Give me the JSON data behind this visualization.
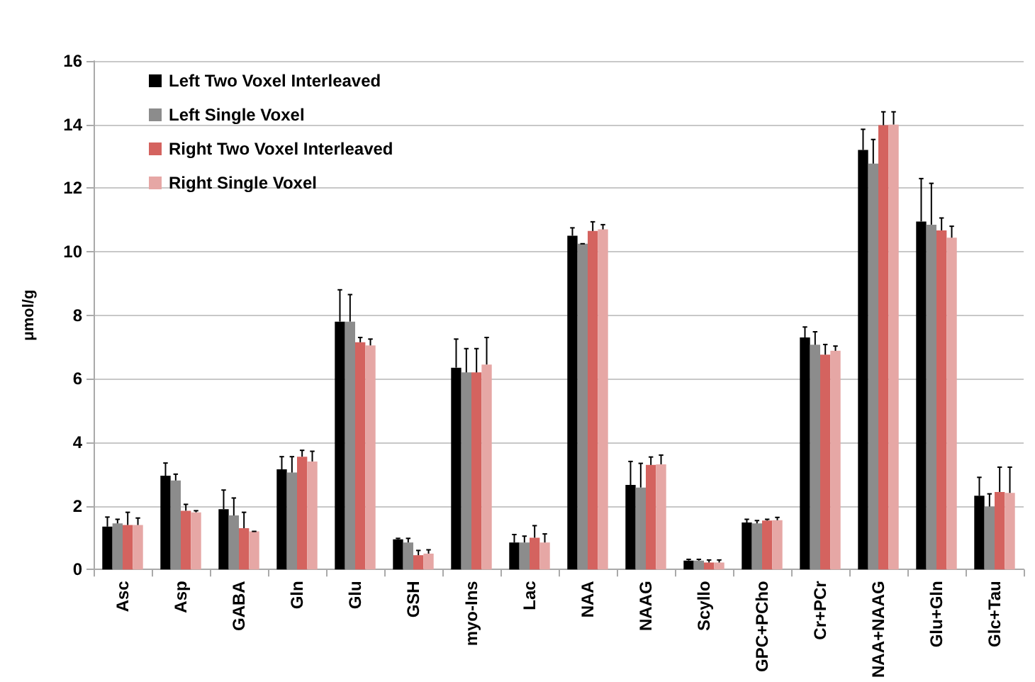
{
  "chart_data": {
    "type": "bar",
    "ylabel": "μmol/g",
    "categories": [
      "Asc",
      "Asp",
      "GABA",
      "Gln",
      "Glu",
      "GSH",
      "myo-Ins",
      "Lac",
      "NAA",
      "NAAG",
      "Scyllo",
      "GPC+PCho",
      "Cr+PCr",
      "NAA+NAAG",
      "Glu+Gln",
      "Glc+Tau"
    ],
    "series": [
      {
        "name": "Left Two Voxel Interleaved",
        "color": "#000000",
        "values": [
          1.35,
          2.95,
          1.9,
          3.15,
          7.8,
          0.95,
          6.35,
          0.85,
          10.5,
          2.66,
          0.28,
          1.48,
          7.3,
          13.2,
          10.95,
          2.32
        ],
        "errors": [
          [
            1.35,
            1.65
          ],
          [
            2.95,
            3.35
          ],
          [
            1.9,
            2.5
          ],
          [
            3.15,
            3.55
          ],
          [
            7.8,
            8.8
          ],
          [
            0.95,
            0.98
          ],
          [
            6.35,
            7.25
          ],
          [
            0.85,
            1.1
          ],
          [
            10.5,
            10.75
          ],
          [
            2.66,
            3.4
          ],
          [
            0.28,
            0.32
          ],
          [
            1.48,
            1.58
          ],
          [
            7.3,
            7.63
          ],
          [
            13.2,
            13.85
          ],
          [
            10.95,
            12.3
          ],
          [
            2.32,
            2.9
          ]
        ]
      },
      {
        "name": "Left Single Voxel",
        "color": "#8c8c8c",
        "values": [
          1.45,
          2.8,
          1.7,
          3.05,
          7.8,
          0.85,
          6.2,
          0.85,
          10.25,
          2.58,
          0.28,
          1.45,
          7.07,
          12.77,
          10.85,
          1.98
        ],
        "errors": [
          [
            1.45,
            1.58
          ],
          [
            2.8,
            3.0
          ],
          [
            1.7,
            2.25
          ],
          [
            3.05,
            3.55
          ],
          [
            7.8,
            8.65
          ],
          [
            0.85,
            0.98
          ],
          [
            6.2,
            6.95
          ],
          [
            0.85,
            1.05
          ],
          [
            10.25,
            10.25
          ],
          [
            2.58,
            3.34
          ],
          [
            0.28,
            0.32
          ],
          [
            1.45,
            1.54
          ],
          [
            7.07,
            7.48
          ],
          [
            12.77,
            13.53
          ],
          [
            10.85,
            12.15
          ],
          [
            1.98,
            2.38
          ]
        ]
      },
      {
        "name": "Right Two Voxel Interleaved",
        "color": "#d4635f",
        "values": [
          1.4,
          1.85,
          1.3,
          3.55,
          7.15,
          0.45,
          6.2,
          1.0,
          10.65,
          3.29,
          0.22,
          1.54,
          6.76,
          13.98,
          10.67,
          2.44
        ],
        "errors": [
          [
            1.4,
            1.8
          ],
          [
            1.85,
            2.05
          ],
          [
            1.3,
            1.8
          ],
          [
            3.55,
            3.75
          ],
          [
            7.15,
            7.3
          ],
          [
            0.45,
            0.6
          ],
          [
            6.2,
            6.95
          ],
          [
            1.0,
            1.38
          ],
          [
            10.65,
            10.94
          ],
          [
            3.29,
            3.54
          ],
          [
            0.22,
            0.3
          ],
          [
            1.54,
            1.58
          ],
          [
            6.76,
            7.08
          ],
          [
            13.98,
            14.4
          ],
          [
            10.67,
            11.06
          ],
          [
            2.44,
            3.22
          ]
        ]
      },
      {
        "name": "Right Single Voxel",
        "color": "#e6a7a5",
        "values": [
          1.4,
          1.8,
          1.2,
          3.4,
          7.05,
          0.5,
          6.45,
          0.85,
          10.7,
          3.31,
          0.22,
          1.55,
          6.88,
          14.0,
          10.44,
          2.41
        ],
        "errors": [
          [
            1.4,
            1.62
          ],
          [
            1.8,
            1.85
          ],
          [
            1.2,
            1.2
          ],
          [
            3.4,
            3.72
          ],
          [
            7.05,
            7.25
          ],
          [
            0.5,
            0.62
          ],
          [
            6.45,
            7.3
          ],
          [
            0.85,
            1.12
          ],
          [
            10.7,
            10.85
          ],
          [
            3.31,
            3.6
          ],
          [
            0.22,
            0.3
          ],
          [
            1.55,
            1.64
          ],
          [
            6.88,
            7.03
          ],
          [
            14.0,
            14.4
          ],
          [
            10.44,
            10.8
          ],
          [
            2.41,
            3.22
          ]
        ]
      }
    ],
    "ylim": [
      0,
      16
    ],
    "yticks": [
      0,
      2,
      4,
      6,
      8,
      10,
      12,
      14,
      16
    ],
    "grid": "y",
    "legend": "top left"
  }
}
